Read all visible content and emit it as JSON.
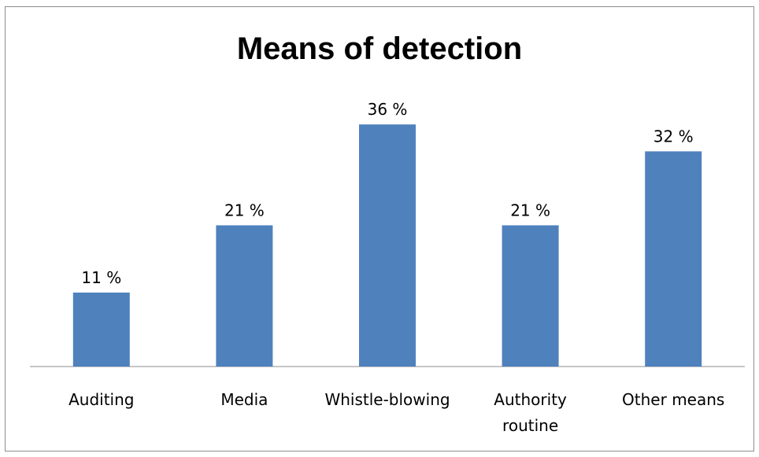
{
  "chart_data": {
    "type": "bar",
    "title": "Means of detection",
    "categories": [
      "Auditing",
      "Media",
      "Whistle-blowing",
      "Authority routine",
      "Other means"
    ],
    "category_lines": [
      [
        "Auditing"
      ],
      [
        "Media"
      ],
      [
        "Whistle-blowing"
      ],
      [
        "Authority",
        "routine"
      ],
      [
        "Other means"
      ]
    ],
    "values": [
      11,
      21,
      36,
      21,
      32
    ],
    "data_labels": [
      "11 %",
      "21 %",
      "36 %",
      "21 %",
      "32 %"
    ],
    "xlabel": "",
    "ylabel": "",
    "ylim": [
      0,
      45
    ],
    "grid": false,
    "legend": "none",
    "bar_color": "#4f81bd"
  }
}
